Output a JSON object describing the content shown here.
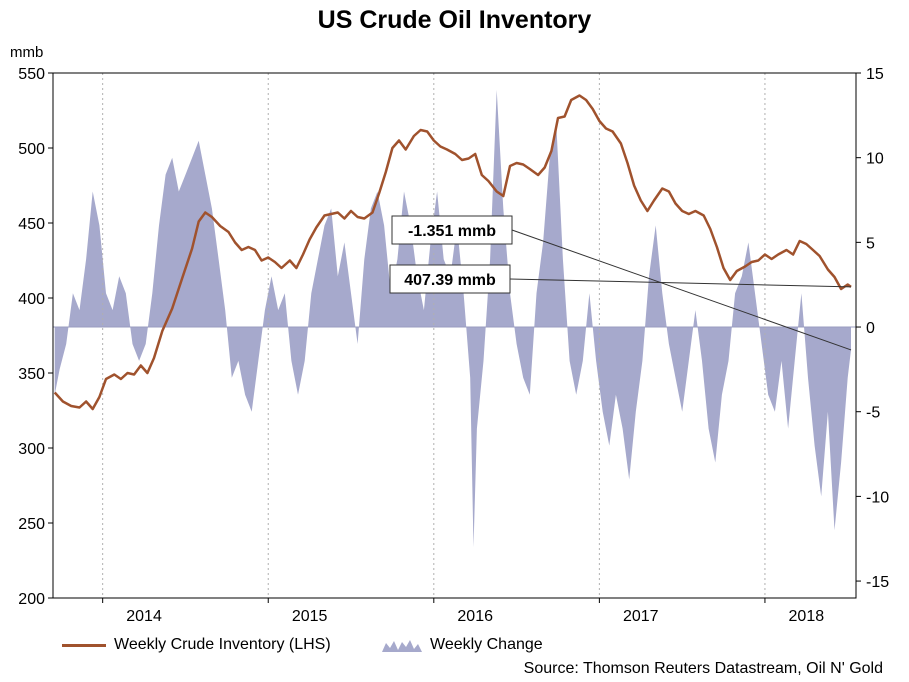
{
  "chart_data": {
    "type": "line+area",
    "title": "US Crude Oil Inventory",
    "left_axis": {
      "unit": "mmb",
      "ticks": [
        200,
        250,
        300,
        350,
        400,
        450,
        500,
        550
      ],
      "lim": [
        200,
        550
      ]
    },
    "right_axis": {
      "ticks": [
        -15,
        -10,
        -5,
        0,
        5,
        10,
        15
      ],
      "lim": [
        -16,
        15
      ]
    },
    "x_ticks": [
      "2014",
      "2015",
      "2016",
      "2017",
      "2018"
    ],
    "x_range": [
      2013.7,
      2018.55
    ],
    "series": [
      {
        "name": "Weekly Crude Inventory (LHS)",
        "axis": "left",
        "color": "#a0522d",
        "points": [
          [
            2013.71,
            337
          ],
          [
            2013.76,
            331
          ],
          [
            2013.81,
            328
          ],
          [
            2013.86,
            327
          ],
          [
            2013.9,
            331
          ],
          [
            2013.94,
            326
          ],
          [
            2013.98,
            334
          ],
          [
            2014.02,
            346
          ],
          [
            2014.07,
            349
          ],
          [
            2014.11,
            346
          ],
          [
            2014.15,
            350
          ],
          [
            2014.19,
            349
          ],
          [
            2014.23,
            355
          ],
          [
            2014.27,
            350
          ],
          [
            2014.31,
            360
          ],
          [
            2014.36,
            378
          ],
          [
            2014.42,
            393
          ],
          [
            2014.48,
            413
          ],
          [
            2014.54,
            433
          ],
          [
            2014.58,
            451
          ],
          [
            2014.62,
            457
          ],
          [
            2014.66,
            454
          ],
          [
            2014.71,
            448
          ],
          [
            2014.76,
            444
          ],
          [
            2014.8,
            437
          ],
          [
            2014.84,
            432
          ],
          [
            2014.88,
            434
          ],
          [
            2014.92,
            432
          ],
          [
            2014.96,
            425
          ],
          [
            2015.0,
            427
          ],
          [
            2015.04,
            424
          ],
          [
            2015.08,
            420
          ],
          [
            2015.13,
            425
          ],
          [
            2015.17,
            420
          ],
          [
            2015.21,
            429
          ],
          [
            2015.25,
            439
          ],
          [
            2015.29,
            447
          ],
          [
            2015.34,
            455
          ],
          [
            2015.38,
            456
          ],
          [
            2015.42,
            457
          ],
          [
            2015.46,
            453
          ],
          [
            2015.5,
            458
          ],
          [
            2015.54,
            454
          ],
          [
            2015.58,
            453
          ],
          [
            2015.63,
            457
          ],
          [
            2015.67,
            470
          ],
          [
            2015.71,
            484
          ],
          [
            2015.75,
            500
          ],
          [
            2015.79,
            505
          ],
          [
            2015.83,
            499
          ],
          [
            2015.88,
            508
          ],
          [
            2015.92,
            512
          ],
          [
            2015.96,
            511
          ],
          [
            2016.0,
            505
          ],
          [
            2016.04,
            501
          ],
          [
            2016.08,
            499
          ],
          [
            2016.13,
            496
          ],
          [
            2016.17,
            492
          ],
          [
            2016.21,
            493
          ],
          [
            2016.25,
            496
          ],
          [
            2016.29,
            482
          ],
          [
            2016.33,
            478
          ],
          [
            2016.38,
            471
          ],
          [
            2016.42,
            468
          ],
          [
            2016.46,
            488
          ],
          [
            2016.5,
            490
          ],
          [
            2016.54,
            489
          ],
          [
            2016.58,
            486
          ],
          [
            2016.63,
            482
          ],
          [
            2016.67,
            487
          ],
          [
            2016.71,
            498
          ],
          [
            2016.75,
            520
          ],
          [
            2016.79,
            521
          ],
          [
            2016.83,
            532
          ],
          [
            2016.88,
            535
          ],
          [
            2016.92,
            532
          ],
          [
            2016.96,
            526
          ],
          [
            2017.0,
            518
          ],
          [
            2017.04,
            513
          ],
          [
            2017.08,
            511
          ],
          [
            2017.13,
            503
          ],
          [
            2017.17,
            490
          ],
          [
            2017.21,
            475
          ],
          [
            2017.25,
            465
          ],
          [
            2017.29,
            458
          ],
          [
            2017.33,
            465
          ],
          [
            2017.38,
            473
          ],
          [
            2017.42,
            471
          ],
          [
            2017.46,
            463
          ],
          [
            2017.5,
            458
          ],
          [
            2017.54,
            456
          ],
          [
            2017.58,
            458
          ],
          [
            2017.63,
            455
          ],
          [
            2017.67,
            446
          ],
          [
            2017.71,
            434
          ],
          [
            2017.75,
            420
          ],
          [
            2017.79,
            412
          ],
          [
            2017.83,
            418
          ],
          [
            2017.88,
            421
          ],
          [
            2017.92,
            424
          ],
          [
            2017.96,
            425
          ],
          [
            2018.0,
            429
          ],
          [
            2018.04,
            426
          ],
          [
            2018.08,
            429
          ],
          [
            2018.13,
            432
          ],
          [
            2018.17,
            429
          ],
          [
            2018.21,
            438
          ],
          [
            2018.25,
            436
          ],
          [
            2018.29,
            432
          ],
          [
            2018.33,
            428
          ],
          [
            2018.38,
            419
          ],
          [
            2018.42,
            414
          ],
          [
            2018.46,
            406
          ],
          [
            2018.5,
            409
          ],
          [
            2018.52,
            407.39
          ]
        ]
      },
      {
        "name": "Weekly Change",
        "axis": "right",
        "color": "#a6a9cc",
        "points": [
          [
            2013.71,
            -4
          ],
          [
            2013.74,
            -2.5
          ],
          [
            2013.78,
            -1
          ],
          [
            2013.82,
            2
          ],
          [
            2013.86,
            1
          ],
          [
            2013.9,
            4
          ],
          [
            2013.94,
            8
          ],
          [
            2013.98,
            6
          ],
          [
            2014.02,
            2
          ],
          [
            2014.06,
            1
          ],
          [
            2014.1,
            3
          ],
          [
            2014.14,
            2
          ],
          [
            2014.18,
            -1
          ],
          [
            2014.22,
            -2
          ],
          [
            2014.26,
            -1
          ],
          [
            2014.3,
            2
          ],
          [
            2014.34,
            6
          ],
          [
            2014.38,
            9
          ],
          [
            2014.42,
            10
          ],
          [
            2014.46,
            8
          ],
          [
            2014.5,
            9
          ],
          [
            2014.54,
            10
          ],
          [
            2014.58,
            11
          ],
          [
            2014.62,
            9
          ],
          [
            2014.66,
            7
          ],
          [
            2014.7,
            4
          ],
          [
            2014.74,
            1
          ],
          [
            2014.78,
            -3
          ],
          [
            2014.82,
            -2
          ],
          [
            2014.86,
            -4
          ],
          [
            2014.9,
            -5
          ],
          [
            2014.94,
            -2
          ],
          [
            2014.98,
            1
          ],
          [
            2015.02,
            3
          ],
          [
            2015.06,
            1
          ],
          [
            2015.1,
            2
          ],
          [
            2015.14,
            -2
          ],
          [
            2015.18,
            -4
          ],
          [
            2015.22,
            -2
          ],
          [
            2015.26,
            2
          ],
          [
            2015.3,
            4
          ],
          [
            2015.34,
            6
          ],
          [
            2015.38,
            7
          ],
          [
            2015.42,
            3
          ],
          [
            2015.46,
            5
          ],
          [
            2015.5,
            2
          ],
          [
            2015.54,
            -1
          ],
          [
            2015.58,
            4
          ],
          [
            2015.62,
            7
          ],
          [
            2015.66,
            8
          ],
          [
            2015.7,
            6
          ],
          [
            2015.74,
            2
          ],
          [
            2015.78,
            4
          ],
          [
            2015.82,
            8
          ],
          [
            2015.86,
            6
          ],
          [
            2015.9,
            3
          ],
          [
            2015.94,
            1
          ],
          [
            2015.98,
            5
          ],
          [
            2016.02,
            8
          ],
          [
            2016.06,
            4
          ],
          [
            2016.1,
            3
          ],
          [
            2016.14,
            6
          ],
          [
            2016.18,
            2
          ],
          [
            2016.22,
            -3
          ],
          [
            2016.24,
            -13
          ],
          [
            2016.26,
            -6
          ],
          [
            2016.3,
            -2
          ],
          [
            2016.34,
            4
          ],
          [
            2016.38,
            14
          ],
          [
            2016.42,
            7
          ],
          [
            2016.46,
            2
          ],
          [
            2016.5,
            -1
          ],
          [
            2016.54,
            -3
          ],
          [
            2016.58,
            -4
          ],
          [
            2016.62,
            2
          ],
          [
            2016.66,
            5
          ],
          [
            2016.7,
            10
          ],
          [
            2016.74,
            12
          ],
          [
            2016.78,
            4
          ],
          [
            2016.82,
            -2
          ],
          [
            2016.86,
            -4
          ],
          [
            2016.9,
            -2
          ],
          [
            2016.94,
            2
          ],
          [
            2016.98,
            -2
          ],
          [
            2017.02,
            -5
          ],
          [
            2017.06,
            -7
          ],
          [
            2017.1,
            -4
          ],
          [
            2017.14,
            -6
          ],
          [
            2017.18,
            -9
          ],
          [
            2017.22,
            -5
          ],
          [
            2017.26,
            -2
          ],
          [
            2017.3,
            3
          ],
          [
            2017.34,
            6
          ],
          [
            2017.38,
            2
          ],
          [
            2017.42,
            -1
          ],
          [
            2017.46,
            -3
          ],
          [
            2017.5,
            -5
          ],
          [
            2017.54,
            -2
          ],
          [
            2017.58,
            1
          ],
          [
            2017.62,
            -2
          ],
          [
            2017.66,
            -6
          ],
          [
            2017.7,
            -8
          ],
          [
            2017.74,
            -4
          ],
          [
            2017.78,
            -2
          ],
          [
            2017.82,
            2
          ],
          [
            2017.86,
            3
          ],
          [
            2017.9,
            5
          ],
          [
            2017.94,
            2
          ],
          [
            2017.98,
            -1
          ],
          [
            2018.02,
            -4
          ],
          [
            2018.06,
            -5
          ],
          [
            2018.1,
            -2
          ],
          [
            2018.14,
            -6
          ],
          [
            2018.18,
            -2
          ],
          [
            2018.22,
            2
          ],
          [
            2018.26,
            -3
          ],
          [
            2018.3,
            -7
          ],
          [
            2018.34,
            -10
          ],
          [
            2018.38,
            -5
          ],
          [
            2018.42,
            -12
          ],
          [
            2018.46,
            -8
          ],
          [
            2018.5,
            -3
          ],
          [
            2018.52,
            -1.351
          ]
        ]
      }
    ],
    "annotations": [
      {
        "text": "-1.351 mmb",
        "target": [
          2018.52,
          -1.351
        ],
        "axis": "right"
      },
      {
        "text": "407.39 mmb",
        "target": [
          2018.52,
          407.39
        ],
        "axis": "left"
      }
    ],
    "legend": [
      "Weekly Crude Inventory (LHS)",
      "Weekly Change"
    ],
    "source": "Source: Thomson Reuters Datastream, Oil N' Gold"
  }
}
